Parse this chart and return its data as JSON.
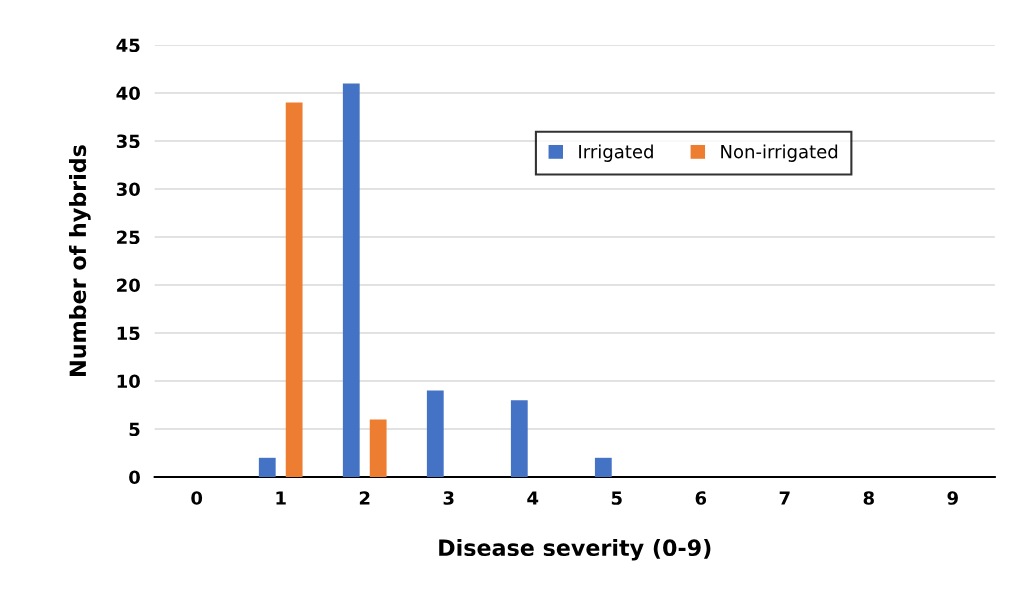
{
  "chart_data": {
    "type": "bar",
    "xlabel": "Disease severity (0-9)",
    "ylabel": "Number of hybrids",
    "categories": [
      "0",
      "1",
      "2",
      "3",
      "4",
      "5",
      "6",
      "7",
      "8",
      "9"
    ],
    "series": [
      {
        "name": "Irrigated",
        "color": "#4472c4",
        "values": [
          0,
          2,
          41,
          9,
          8,
          2,
          0,
          0,
          0,
          0
        ]
      },
      {
        "name": "Non-irrigated",
        "color": "#ed7d31",
        "values": [
          0,
          39,
          6,
          0,
          0,
          0,
          0,
          0,
          0,
          0
        ]
      }
    ],
    "ylim": [
      0,
      45
    ],
    "yticks": [
      0,
      5,
      10,
      15,
      20,
      25,
      30,
      35,
      40,
      45
    ],
    "grid": "y",
    "legend": "top right"
  }
}
